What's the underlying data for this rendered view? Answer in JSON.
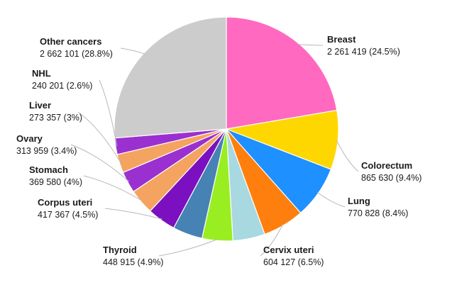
{
  "chart_data": {
    "type": "pie",
    "slices": [
      {
        "name": "Breast",
        "value": 2261419,
        "value_label": "2 261 419 (24.5%)",
        "percent": 24.5,
        "color": "#ff69c0"
      },
      {
        "name": "Colorectum",
        "value": 865630,
        "value_label": "865 630 (9.4%)",
        "percent": 9.4,
        "color": "#ffd700"
      },
      {
        "name": "Lung",
        "value": 770828,
        "value_label": "770 828 (8.4%)",
        "percent": 8.4,
        "color": "#1e90ff"
      },
      {
        "name": "Cervix uteri",
        "value": 604127,
        "value_label": "604 127 (6.5%)",
        "percent": 6.5,
        "color": "#ff7f0e"
      },
      {
        "name": "",
        "value": 468000,
        "value_label": "",
        "percent": 5.1,
        "color": "#a8d8e0"
      },
      {
        "name": "Thyroid",
        "value": 448915,
        "value_label": "448 915 (4.9%)",
        "percent": 4.9,
        "color": "#99ee22"
      },
      {
        "name": "",
        "value": 435000,
        "value_label": "",
        "percent": 4.7,
        "color": "#4682b4"
      },
      {
        "name": "Corpus uteri",
        "value": 417367,
        "value_label": "417 367 (4.5%)",
        "percent": 4.5,
        "color": "#7b10c0"
      },
      {
        "name": "Stomach",
        "value": 369580,
        "value_label": "369 580 (4%)",
        "percent": 4.0,
        "color": "#f4a460"
      },
      {
        "name": "Ovary",
        "value": 313959,
        "value_label": "313 959 (3.4%)",
        "percent": 3.4,
        "color": "#9b30d0"
      },
      {
        "name": "Liver",
        "value": 273357,
        "value_label": "273 357 (3%)",
        "percent": 3.0,
        "color": "#f4a460"
      },
      {
        "name": "NHL",
        "value": 240201,
        "value_label": "240 201 (2.6%)",
        "percent": 2.6,
        "color": "#9b30d0"
      },
      {
        "name": "Other cancers",
        "value": 2662101,
        "value_label": "2 662 101 (28.8%)",
        "percent": 28.8,
        "color": "#cccccc"
      }
    ]
  }
}
